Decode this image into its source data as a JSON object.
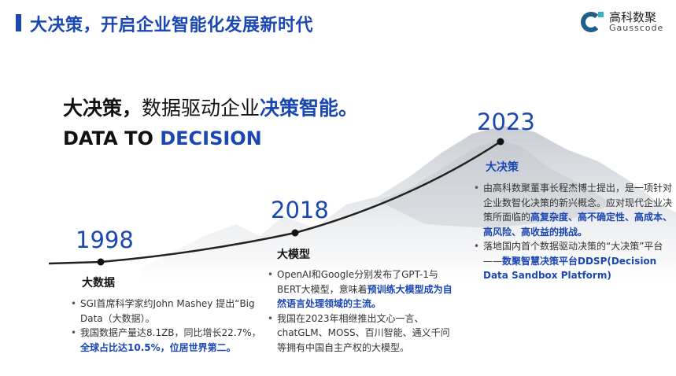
{
  "header": {
    "title": "大决策，开启企业智能化发展新时代",
    "logo_cn": "高科数聚",
    "logo_en": "Gausscode"
  },
  "headline": {
    "part1": "大决策，",
    "part2": "数据驱动企业",
    "part3": "决策智能。"
  },
  "subline": {
    "part1": "DATA TO ",
    "part2": "DECISION"
  },
  "colors": {
    "accent": "#1b47b3"
  },
  "timeline": [
    {
      "year": "1998",
      "title": "大数据",
      "bullets": [
        {
          "text": "SGI首席科学家约John  Mashey 提出“Big Data（大数据）。",
          "highlight": ""
        },
        {
          "text": "我国数据产量达8.1ZB，同比增长22.7%，",
          "highlight": "全球占比达10.5%，位居世界第二。"
        }
      ]
    },
    {
      "year": "2018",
      "title": "大模型",
      "bullets": [
        {
          "text": "OpenAI和Google分别发布了GPT-1与BERT大模型，意味着",
          "highlight": "预训练大模型成为自然语言处理领域的主流。"
        },
        {
          "text": "我国在2023年相继推出文心一言、chatGLM、MOSS、百川智能、通义千问等拥有中国自主产权的大模型。",
          "highlight": ""
        }
      ]
    },
    {
      "year": "2023",
      "title": "大决策",
      "bullets": [
        {
          "text": "由高科数聚董事长程杰博士提出，是一项针对企业数智化决策的新兴概念。应对现代企业决策所面临的",
          "highlight": "高复杂度、高不确定性、高成本、高风险、高收益的挑战。"
        },
        {
          "text": "落地国内首个数据驱动决策的“大决策”平台——",
          "highlight": "数聚智慧决策平台DDSP(Decision Data Sandbox Platform)"
        }
      ]
    }
  ]
}
